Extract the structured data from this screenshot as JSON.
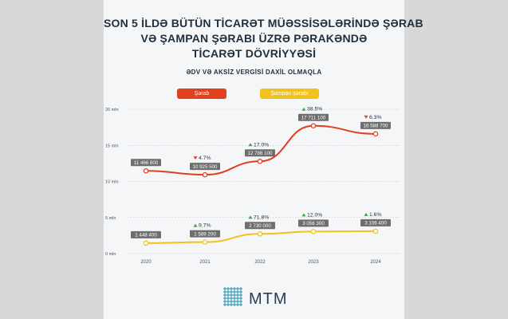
{
  "title_lines": [
    "SON 5 İLDƏ BÜTÜN TİCARƏT MÜƏSSİSƏLƏRİNDƏ ŞƏRAB",
    "VƏ ŞAMPAN ŞƏRABI ÜZRƏ PƏRAKƏNDƏ",
    "TİCARƏT DÖVRİYYƏSİ"
  ],
  "subtitle": "ƏDV VƏ AKSİZ VERGİSİ DAXİL OLMAQLA",
  "logo_text": "MTM",
  "colors": {
    "wine": "#e0401e",
    "champagne": "#f2c21b",
    "label_box": "#6e6e6e",
    "up": "#3aa64a",
    "down": "#e0401e",
    "text": "#1f2f3e"
  },
  "chart_data": {
    "type": "line",
    "categories": [
      "2020",
      "2021",
      "2022",
      "2023",
      "2024"
    ],
    "y_unit_note": "",
    "series": [
      {
        "name": "Şərab",
        "values": [
          11466800,
          10925500,
          12786100,
          17711100,
          16588700
        ],
        "value_labels": [
          "11 466 800",
          "10 925 500",
          "12 786 100",
          "17 711 100",
          "16 588 700"
        ],
        "changes": [
          null,
          "4.7%",
          "17.0%",
          "38.5%",
          "6.3%"
        ],
        "change_dirs": [
          null,
          "down",
          "up",
          "up",
          "down"
        ]
      },
      {
        "name": "Şampan şərabı",
        "values": [
          1448400,
          1589200,
          2730000,
          3056300,
          3106400
        ],
        "value_labels": [
          "1 448 400",
          "1 589 200",
          "2 730 000",
          "3 056 300",
          "3 106 400"
        ],
        "changes": [
          null,
          "9.7%",
          "71.8%",
          "12.0%",
          "1.6%"
        ],
        "change_dirs": [
          null,
          "up",
          "up",
          "up",
          "up"
        ]
      }
    ],
    "ylim": [
      0,
      20000000
    ],
    "y_ticks": [
      0,
      5000000,
      10000000,
      15000000,
      20000000
    ],
    "y_tick_labels": [
      "0 mln",
      "5 mln",
      "10 mln",
      "15 mln",
      "20 mln"
    ],
    "grid": "horizontal dotted",
    "legend": "top",
    "xlabel": "",
    "ylabel": ""
  }
}
